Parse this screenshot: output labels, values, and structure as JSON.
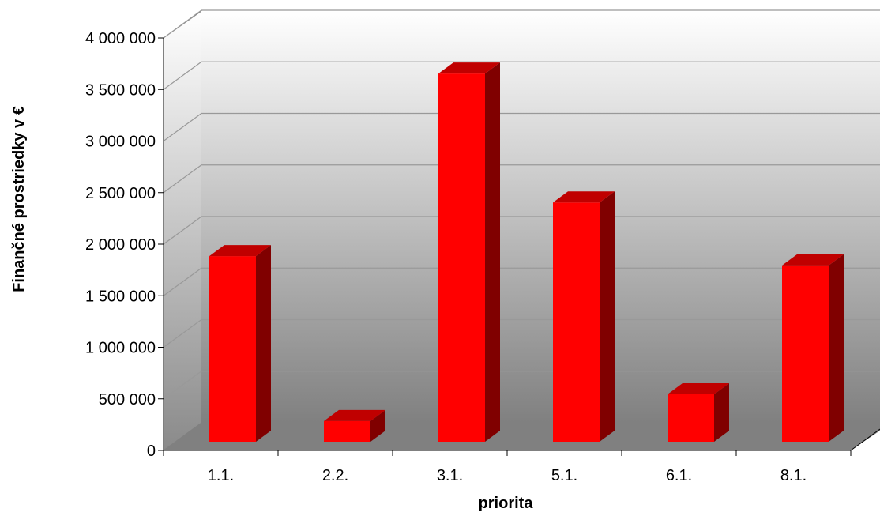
{
  "chart_data": {
    "type": "bar",
    "categories": [
      "1.1.",
      "2.2.",
      "3.1.",
      "5.1.",
      "6.1.",
      "8.1."
    ],
    "values": [
      1800000,
      200000,
      3570000,
      2320000,
      460000,
      1710000
    ],
    "xlabel": "priorita",
    "ylabel": "Finančné prostriedky v €",
    "ylim": [
      0,
      4000000
    ],
    "yticks": [
      0,
      500000,
      1000000,
      1500000,
      2000000,
      2500000,
      3000000,
      3500000,
      4000000
    ],
    "ytick_labels": [
      "0",
      "500 000",
      "1 000 000",
      "1 500 000",
      "2 000 000",
      "2 500 000",
      "3 000 000",
      "3 500 000",
      "4 000 000"
    ],
    "grid": true,
    "legend": "none",
    "style": "3d-column",
    "colors": {
      "bar_front": "#ff0000",
      "bar_side": "#800000",
      "bar_top": "#c00000",
      "floor": "#808080",
      "wall_top": "#ffffff",
      "wall_bottom": "#808080",
      "gridline": "#999999"
    }
  }
}
